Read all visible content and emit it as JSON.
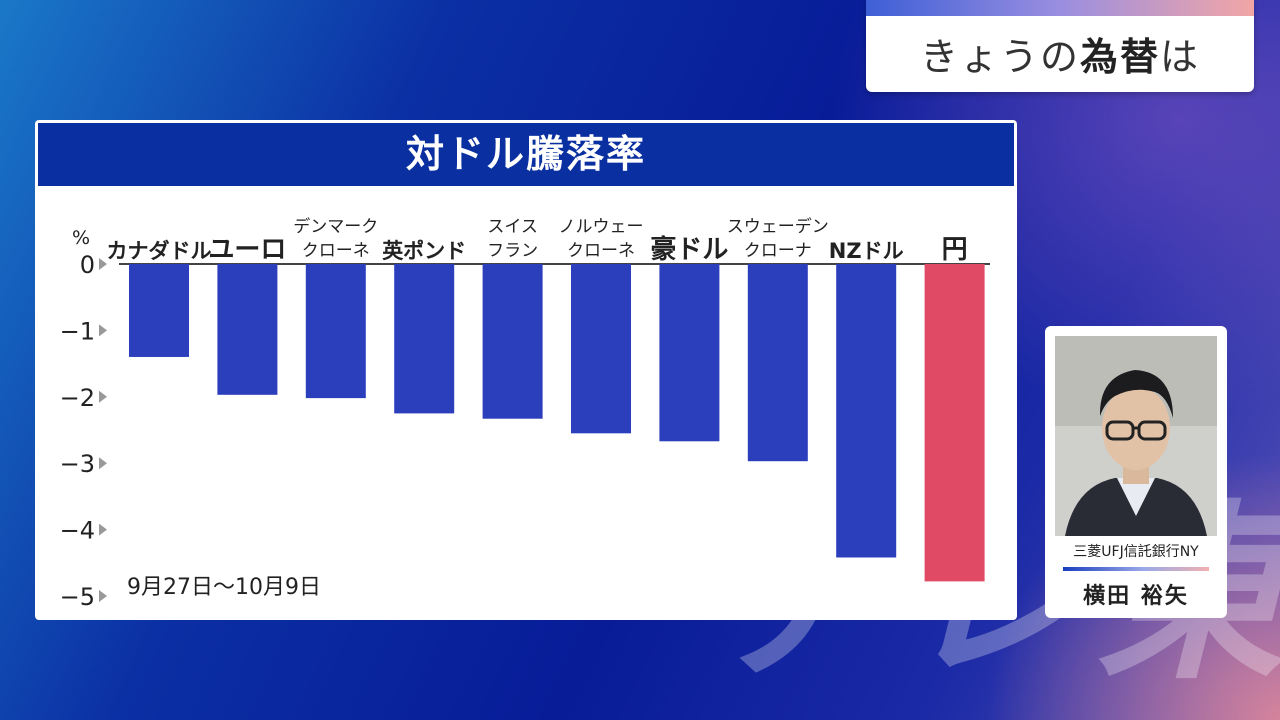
{
  "topic": {
    "prefix": "きょうの",
    "bold": "為替",
    "suffix": "は"
  },
  "watermark": "テレ東",
  "person": {
    "organization": "三菱UFJ信託銀行NY",
    "name": "横田 裕矢"
  },
  "colors": {
    "negative_bar": "#2b3fbd",
    "yen_bar": "#e04a64",
    "title_bar": "#0a2fa0"
  },
  "chart_data": {
    "type": "bar",
    "title": "対ドル騰落率",
    "ylabel": "%",
    "period_note": "9月27日〜10月9日",
    "ylim": [
      -5,
      0
    ],
    "yticks": [
      0,
      -1,
      -2,
      -3,
      -4,
      -5
    ],
    "categories": [
      [
        "カナダドル"
      ],
      [
        "ユーロ"
      ],
      [
        "デンマーク",
        "クローネ"
      ],
      [
        "英ポンド"
      ],
      [
        "スイス",
        "フラン"
      ],
      [
        "ノルウェー",
        "クローネ"
      ],
      [
        "豪ドル"
      ],
      [
        "スウェーデン",
        "クローナ"
      ],
      [
        "NZドル"
      ],
      [
        "円"
      ]
    ],
    "values": [
      -1.4,
      -1.97,
      -2.02,
      -2.25,
      -2.33,
      -2.55,
      -2.67,
      -2.97,
      -4.42,
      -4.78
    ],
    "highlight": [
      "normal",
      "normal",
      "normal",
      "normal",
      "normal",
      "normal",
      "normal",
      "normal",
      "normal",
      "yen"
    ],
    "grid": false,
    "legend": "none"
  }
}
